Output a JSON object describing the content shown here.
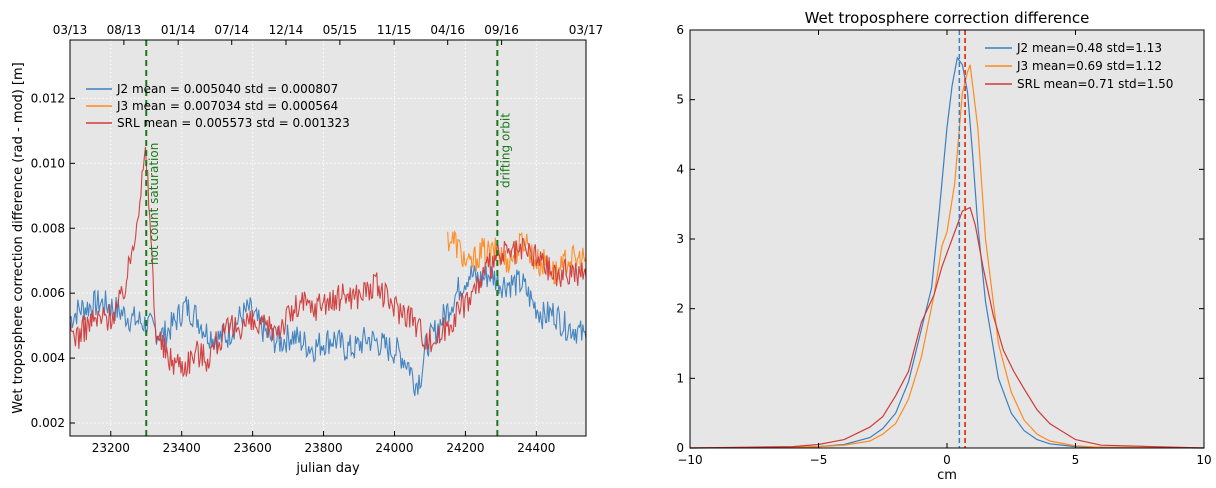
{
  "chart_data": [
    {
      "type": "line",
      "title": "",
      "xlabel": "julian day",
      "ylabel": "Wet troposphere correction  difference (rad - mod) [m]",
      "xlim": [
        23085,
        24540
      ],
      "ylim": [
        0.0016,
        0.0138
      ],
      "xticks": [
        23200,
        23400,
        23600,
        23800,
        24000,
        24200,
        24400
      ],
      "yticks": [
        0.002,
        0.004,
        0.006,
        0.008,
        0.01,
        0.012
      ],
      "ytick_labels": [
        "0.002",
        "0.004",
        "0.006",
        "0.008",
        "0.010",
        "0.012"
      ],
      "top_axis_ticks": [
        {
          "x": 23085,
          "label": "03/13"
        },
        {
          "x": 23237,
          "label": "08/13"
        },
        {
          "x": 23390,
          "label": "01/14"
        },
        {
          "x": 23541,
          "label": "07/14"
        },
        {
          "x": 23694,
          "label": "12/14"
        },
        {
          "x": 23846,
          "label": "05/15"
        },
        {
          "x": 23999,
          "label": "11/15"
        },
        {
          "x": 24150,
          "label": "04/16"
        },
        {
          "x": 24302,
          "label": "09/16"
        },
        {
          "x": 24540,
          "label": "03/17"
        }
      ],
      "grid": true,
      "legend_position": "top-left",
      "series": [
        {
          "name": "J2",
          "legend_text": "J2    mean = 0.005040   std = 0.000807",
          "color": "#3c7fbf",
          "x": [
            23085,
            23110,
            23140,
            23170,
            23200,
            23230,
            23260,
            23290,
            23320,
            23350,
            23380,
            23410,
            23440,
            23470,
            23500,
            23530,
            23560,
            23590,
            23620,
            23650,
            23680,
            23710,
            23740,
            23770,
            23800,
            23830,
            23860,
            23890,
            23920,
            23950,
            23980,
            24010,
            24040,
            24060,
            24075,
            24090,
            24120,
            24150,
            24180,
            24210,
            24240,
            24270,
            24300,
            24330,
            24360,
            24390,
            24420,
            24450,
            24480,
            24510,
            24540
          ],
          "y": [
            0.0052,
            0.0055,
            0.0056,
            0.0057,
            0.0056,
            0.0054,
            0.0052,
            0.0051,
            0.0049,
            0.0047,
            0.0051,
            0.0056,
            0.0053,
            0.0048,
            0.0046,
            0.0047,
            0.0052,
            0.0055,
            0.005,
            0.0046,
            0.0045,
            0.0047,
            0.0045,
            0.0043,
            0.0045,
            0.0046,
            0.0043,
            0.0043,
            0.0046,
            0.0045,
            0.0043,
            0.0042,
            0.0038,
            0.0032,
            0.0035,
            0.0044,
            0.0049,
            0.0055,
            0.0061,
            0.0066,
            0.0064,
            0.0066,
            0.0063,
            0.0063,
            0.0063,
            0.0057,
            0.0053,
            0.0054,
            0.005,
            0.0049,
            0.0046
          ]
        },
        {
          "name": "J3",
          "legend_text": "J3    mean = 0.007034   std = 0.000564",
          "color": "#ff8a1e",
          "x": [
            24150,
            24170,
            24190,
            24210,
            24230,
            24250,
            24270,
            24290,
            24310,
            24330,
            24350,
            24370,
            24390,
            24410,
            24430,
            24450,
            24470,
            24490,
            24510,
            24540
          ],
          "y": [
            0.0077,
            0.0076,
            0.0072,
            0.0068,
            0.0071,
            0.0073,
            0.0072,
            0.0073,
            0.007,
            0.0071,
            0.0074,
            0.0077,
            0.0071,
            0.0069,
            0.007,
            0.0066,
            0.0067,
            0.0071,
            0.007,
            0.0071
          ]
        },
        {
          "name": "SRL",
          "legend_text": "SRL   mean = 0.005573   std = 0.001323",
          "color": "#d03a3a",
          "x": [
            23085,
            23110,
            23140,
            23170,
            23200,
            23230,
            23250,
            23270,
            23285,
            23298,
            23310,
            23325,
            23340,
            23360,
            23380,
            23410,
            23440,
            23470,
            23500,
            23530,
            23560,
            23590,
            23620,
            23650,
            23680,
            23710,
            23740,
            23770,
            23800,
            23830,
            23860,
            23890,
            23920,
            23950,
            23980,
            24010,
            24040,
            24070,
            24100,
            24130,
            24160,
            24190,
            24220,
            24250,
            24280,
            24310,
            24340,
            24370,
            24400,
            24430,
            24460,
            24490,
            24520,
            24540
          ],
          "y": [
            0.0048,
            0.0047,
            0.0051,
            0.0052,
            0.0053,
            0.0058,
            0.0067,
            0.0081,
            0.0092,
            0.0103,
            0.0085,
            0.005,
            0.0045,
            0.004,
            0.0039,
            0.0038,
            0.0042,
            0.004,
            0.0045,
            0.0048,
            0.005,
            0.0051,
            0.0049,
            0.0049,
            0.005,
            0.0054,
            0.0057,
            0.0055,
            0.0058,
            0.0057,
            0.006,
            0.0059,
            0.0061,
            0.0062,
            0.0058,
            0.0055,
            0.0054,
            0.0049,
            0.0045,
            0.0047,
            0.0052,
            0.0056,
            0.006,
            0.0065,
            0.007,
            0.0072,
            0.0072,
            0.0073,
            0.0071,
            0.0068,
            0.0065,
            0.0067,
            0.0066,
            0.0065
          ]
        }
      ],
      "vlines": [
        {
          "x": 23300,
          "label": "hot count saturation",
          "color": "#1a7a1a"
        },
        {
          "x": 24290,
          "label": "drifting orbit",
          "color": "#1a7a1a"
        }
      ]
    },
    {
      "type": "line",
      "title": "Wet troposphere correction difference",
      "xlabel": "cm",
      "ylabel": "",
      "xlim": [
        -10,
        10
      ],
      "ylim": [
        0,
        6
      ],
      "xticks": [
        -10,
        -5,
        0,
        5,
        10
      ],
      "xtick_labels": [
        "−10",
        "−5",
        "0",
        "5",
        "10"
      ],
      "yticks": [
        0,
        1,
        2,
        3,
        4,
        5,
        6
      ],
      "grid": false,
      "legend_position": "top-right",
      "series": [
        {
          "name": "J2",
          "legend_text": "J2  mean=0.48 std=1.13",
          "color": "#3c7fbf",
          "mean": 0.48,
          "x": [
            -10,
            -6,
            -5,
            -4,
            -3,
            -2.5,
            -2,
            -1.5,
            -1,
            -0.6,
            -0.3,
            0,
            0.2,
            0.4,
            0.6,
            0.8,
            1.0,
            1.2,
            1.5,
            2,
            2.5,
            3,
            3.5,
            4,
            5,
            6,
            10
          ],
          "y": [
            0,
            0.01,
            0.02,
            0.05,
            0.15,
            0.28,
            0.5,
            0.95,
            1.7,
            2.3,
            3.4,
            4.6,
            5.2,
            5.6,
            5.5,
            5.1,
            4.2,
            3.2,
            2.1,
            1.0,
            0.5,
            0.25,
            0.12,
            0.06,
            0.02,
            0.01,
            0
          ]
        },
        {
          "name": "J3",
          "legend_text": "J3  mean=0.69 std=1.12",
          "color": "#ff8a1e",
          "mean": 0.69,
          "x": [
            -10,
            -6,
            -5,
            -4,
            -3,
            -2.5,
            -2,
            -1.5,
            -1,
            -0.5,
            -0.2,
            0,
            0.3,
            0.6,
            0.8,
            0.9,
            1.0,
            1.2,
            1.5,
            2,
            2.5,
            3,
            3.5,
            4,
            5,
            6,
            10
          ],
          "y": [
            0,
            0.01,
            0.02,
            0.04,
            0.1,
            0.2,
            0.35,
            0.7,
            1.3,
            2.2,
            2.9,
            3.1,
            3.8,
            5.1,
            5.4,
            5.5,
            5.2,
            4.6,
            3.0,
            1.5,
            0.8,
            0.4,
            0.2,
            0.1,
            0.03,
            0.01,
            0
          ]
        },
        {
          "name": "SRL",
          "legend_text": "SRL mean=0.71 std=1.50",
          "color": "#d03a3a",
          "mean": 0.71,
          "x": [
            -10,
            -6,
            -5,
            -4,
            -3,
            -2.5,
            -2,
            -1.5,
            -1,
            -0.5,
            -0.2,
            0,
            0.3,
            0.6,
            0.9,
            1.1,
            1.4,
            1.8,
            2.2,
            2.6,
            3,
            3.5,
            4,
            5,
            6,
            10
          ],
          "y": [
            0,
            0.02,
            0.05,
            0.12,
            0.3,
            0.45,
            0.75,
            1.1,
            1.8,
            2.2,
            2.6,
            2.8,
            3.1,
            3.4,
            3.45,
            3.2,
            2.6,
            1.9,
            1.4,
            1.1,
            0.85,
            0.55,
            0.35,
            0.12,
            0.04,
            0
          ]
        }
      ]
    }
  ]
}
